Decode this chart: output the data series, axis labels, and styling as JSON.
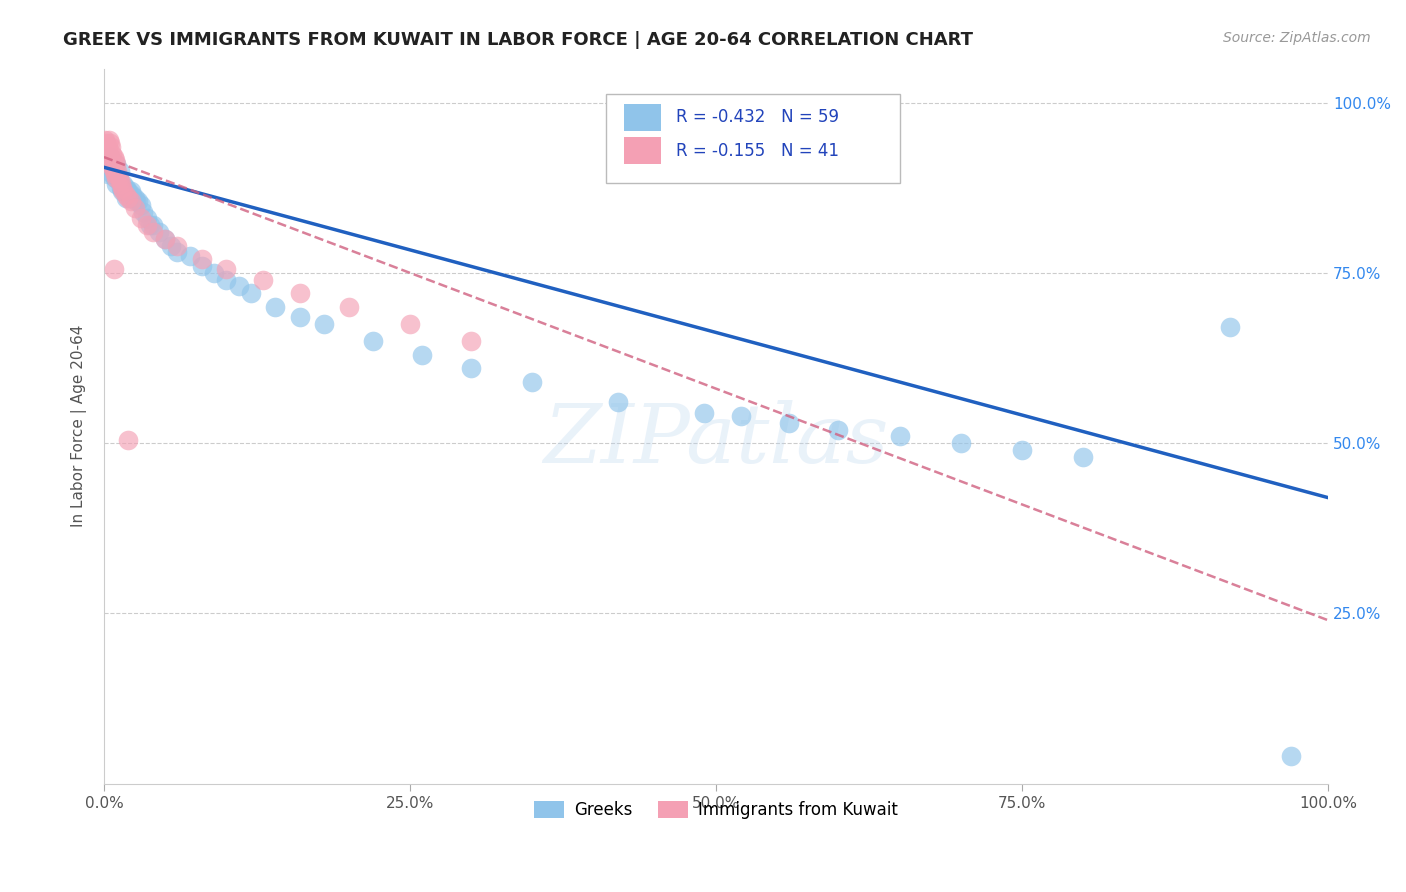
{
  "title": "GREEK VS IMMIGRANTS FROM KUWAIT IN LABOR FORCE | AGE 20-64 CORRELATION CHART",
  "source": "Source: ZipAtlas.com",
  "ylabel": "In Labor Force | Age 20-64",
  "xlim": [
    0.0,
    1.0
  ],
  "ylim": [
    0.0,
    1.05
  ],
  "xtick_labels": [
    "0.0%",
    "25.0%",
    "50.0%",
    "75.0%",
    "100.0%"
  ],
  "xtick_vals": [
    0.0,
    0.25,
    0.5,
    0.75,
    1.0
  ],
  "ytick_right_labels": [
    "100.0%",
    "75.0%",
    "50.0%",
    "25.0%"
  ],
  "ytick_right_vals": [
    1.0,
    0.75,
    0.5,
    0.25
  ],
  "background_color": "#ffffff",
  "grid_color": "#cccccc",
  "watermark": "ZIPatlas",
  "legend_R_blue": "-0.432",
  "legend_N_blue": "59",
  "legend_R_pink": "-0.155",
  "legend_N_pink": "41",
  "blue_color": "#90C4EA",
  "pink_color": "#F4A0B4",
  "trendline_blue": "#2060C0",
  "trendline_pink": "#D06080",
  "label_blue": "Greeks",
  "label_pink": "Immigrants from Kuwait",
  "blue_points_x": [
    0.003,
    0.004,
    0.005,
    0.006,
    0.007,
    0.008,
    0.009,
    0.01,
    0.01,
    0.011,
    0.012,
    0.013,
    0.014,
    0.015,
    0.016,
    0.017,
    0.018,
    0.018,
    0.019,
    0.02,
    0.021,
    0.022,
    0.023,
    0.025,
    0.026,
    0.028,
    0.03,
    0.032,
    0.035,
    0.038,
    0.04,
    0.045,
    0.05,
    0.055,
    0.06,
    0.07,
    0.08,
    0.09,
    0.1,
    0.11,
    0.12,
    0.14,
    0.16,
    0.18,
    0.22,
    0.26,
    0.3,
    0.35,
    0.42,
    0.49,
    0.52,
    0.56,
    0.6,
    0.65,
    0.7,
    0.75,
    0.8,
    0.92,
    0.97
  ],
  "blue_points_y": [
    0.895,
    0.91,
    0.92,
    0.905,
    0.895,
    0.9,
    0.89,
    0.91,
    0.88,
    0.895,
    0.885,
    0.9,
    0.875,
    0.87,
    0.88,
    0.87,
    0.875,
    0.86,
    0.87,
    0.87,
    0.86,
    0.87,
    0.865,
    0.86,
    0.855,
    0.855,
    0.85,
    0.84,
    0.83,
    0.82,
    0.82,
    0.81,
    0.8,
    0.79,
    0.78,
    0.775,
    0.76,
    0.75,
    0.74,
    0.73,
    0.72,
    0.7,
    0.685,
    0.675,
    0.65,
    0.63,
    0.61,
    0.59,
    0.56,
    0.545,
    0.54,
    0.53,
    0.52,
    0.51,
    0.5,
    0.49,
    0.48,
    0.67,
    0.04
  ],
  "pink_points_x": [
    0.001,
    0.002,
    0.003,
    0.004,
    0.004,
    0.005,
    0.005,
    0.006,
    0.006,
    0.007,
    0.007,
    0.008,
    0.008,
    0.009,
    0.009,
    0.01,
    0.01,
    0.011,
    0.012,
    0.013,
    0.014,
    0.015,
    0.016,
    0.018,
    0.02,
    0.022,
    0.025,
    0.03,
    0.035,
    0.04,
    0.05,
    0.06,
    0.08,
    0.1,
    0.13,
    0.16,
    0.2,
    0.25,
    0.3,
    0.02,
    0.008
  ],
  "pink_points_y": [
    0.945,
    0.94,
    0.935,
    0.945,
    0.925,
    0.94,
    0.92,
    0.935,
    0.91,
    0.925,
    0.905,
    0.92,
    0.9,
    0.915,
    0.895,
    0.91,
    0.89,
    0.9,
    0.89,
    0.885,
    0.88,
    0.875,
    0.87,
    0.865,
    0.86,
    0.855,
    0.845,
    0.83,
    0.82,
    0.81,
    0.8,
    0.79,
    0.77,
    0.755,
    0.74,
    0.72,
    0.7,
    0.675,
    0.65,
    0.505,
    0.755
  ],
  "blue_trendline_x0": 0.0,
  "blue_trendline_y0": 0.905,
  "blue_trendline_x1": 1.0,
  "blue_trendline_y1": 0.42,
  "pink_trendline_x0": 0.0,
  "pink_trendline_y0": 0.92,
  "pink_trendline_x1": 1.0,
  "pink_trendline_y1": 0.24
}
